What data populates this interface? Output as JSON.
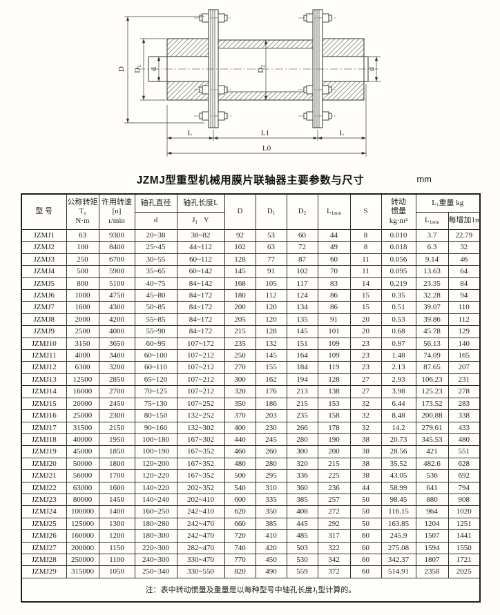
{
  "title": "JZMJ型重型机械用膜片联轴器主要参数与尺寸",
  "unit": "mm",
  "drawing": {
    "labels": {
      "D": "D",
      "D1_base": "D",
      "D1_sub": "1",
      "d_left": "d",
      "D2_base": "D",
      "D2_sub": "2",
      "d_right": "d",
      "L_left": "L",
      "L1": "L1",
      "L_right": "L",
      "L0": "L0"
    }
  },
  "table": {
    "header": {
      "model": "型 号",
      "torque": {
        "l1": "公称转矩",
        "t_base": "T",
        "t_sub": "n",
        "l3": "N·m"
      },
      "speed": {
        "l1": "许用转速",
        "l2": "[n]",
        "l3": "r/min"
      },
      "bore_dia": {
        "top": "轴孔直径",
        "sub": "d"
      },
      "bore_len": {
        "top": "轴孔长度L",
        "j_base": "J",
        "j_sub": "1",
        "y": "Y"
      },
      "D": "D",
      "D1_base": "D",
      "D1_sub": "1",
      "D2_base": "D",
      "D2_sub": "2",
      "Lmin_base": "L",
      "Lmin_sub": "1min",
      "S": "S",
      "inertia": {
        "l1": "转动",
        "l2": "惯量",
        "l3": "kg·m²"
      },
      "weight": {
        "grp_base": "L",
        "grp_sub": "1",
        "grp_tail": "重量 kg",
        "c1_base": "L",
        "c1_sub": "1min",
        "c2": "每增加1m"
      }
    },
    "rows": [
      [
        "JZMJ1",
        "63",
        "9300",
        "20~38",
        "38~82",
        "92",
        "53",
        "60",
        "44",
        "8",
        "0.010",
        "3.7",
        "22.79"
      ],
      [
        "JZMJ2",
        "100",
        "8400",
        "25~45",
        "44~112",
        "102",
        "63",
        "72",
        "49",
        "8",
        "0.018",
        "6.3",
        "32"
      ],
      [
        "JZMJ3",
        "250",
        "6700",
        "30~55",
        "60~112",
        "128",
        "77",
        "87",
        "60",
        "11",
        "0.056",
        "9.14",
        "46"
      ],
      [
        "JZMJ4",
        "500",
        "5900",
        "35~65",
        "60~142",
        "145",
        "91",
        "102",
        "70",
        "11",
        "0.095",
        "13.63",
        "64"
      ],
      [
        "JZMJ5",
        "800",
        "5100",
        "40~75",
        "84~142",
        "168",
        "105",
        "117",
        "83",
        "14",
        "0.219",
        "23.35",
        "84"
      ],
      [
        "JZMJ6",
        "1000",
        "4750",
        "45~80",
        "84~172",
        "180",
        "112",
        "124",
        "86",
        "15",
        "0.35",
        "32.28",
        "94"
      ],
      [
        "JZMJ7",
        "1600",
        "4300",
        "50~85",
        "84~172",
        "200",
        "120",
        "134",
        "86",
        "15",
        "0.51",
        "39.07",
        "110"
      ],
      [
        "JZMJ8",
        "2000",
        "4200",
        "55~85",
        "84~172",
        "205",
        "120",
        "135",
        "91",
        "20",
        "0.53",
        "39.86",
        "112"
      ],
      [
        "JZMJ9",
        "2500",
        "4000",
        "55~90",
        "84~172",
        "215",
        "128",
        "145",
        "101",
        "20",
        "0.68",
        "45.78",
        "129"
      ],
      [
        "JZMJ10",
        "3150",
        "3650",
        "60~95",
        "107~172",
        "235",
        "132",
        "151",
        "109",
        "23",
        "0.97",
        "56.13",
        "140"
      ],
      [
        "JZMJ11",
        "4000",
        "3400",
        "60~100",
        "107~212",
        "250",
        "145",
        "164",
        "109",
        "23",
        "1.48",
        "74.09",
        "165"
      ],
      [
        "JZMJ12",
        "6300",
        "3200",
        "60~110",
        "107~212",
        "270",
        "155",
        "184",
        "119",
        "23",
        "2.13",
        "87.65",
        "207"
      ],
      [
        "JZMJ13",
        "12500",
        "2850",
        "65~120",
        "107~212",
        "300",
        "162",
        "194",
        "128",
        "27",
        "2.93",
        "106.23",
        "231"
      ],
      [
        "JZMJ14",
        "16000",
        "2700",
        "70~125",
        "107~212",
        "320",
        "176",
        "213",
        "138",
        "27",
        "3.98",
        "125.23",
        "278"
      ],
      [
        "JZMJ15",
        "20000",
        "2450",
        "75~130",
        "107~252",
        "350",
        "186",
        "215",
        "153",
        "32",
        "6.44",
        "173.52",
        "283"
      ],
      [
        "JZMJ16",
        "25000",
        "2300",
        "80~150",
        "132~252",
        "370",
        "203",
        "235",
        "158",
        "32",
        "8.48",
        "200.88",
        "338"
      ],
      [
        "JZMJ17",
        "31500",
        "2150",
        "90~160",
        "132~302",
        "400",
        "230",
        "266",
        "178",
        "32",
        "14.2",
        "279.61",
        "433"
      ],
      [
        "JZMJ18",
        "40000",
        "1950",
        "100~180",
        "167~302",
        "440",
        "245",
        "280",
        "190",
        "38",
        "20.73",
        "345.53",
        "480"
      ],
      [
        "JZMJ19",
        "45000",
        "1850",
        "100~190",
        "167~352",
        "460",
        "260",
        "300",
        "200",
        "38",
        "28.56",
        "421",
        "551"
      ],
      [
        "JZMJ20",
        "50000",
        "1800",
        "120~200",
        "167~352",
        "480",
        "280",
        "320",
        "215",
        "38",
        "35.52",
        "482.6",
        "628"
      ],
      [
        "JZMJ21",
        "56000",
        "1700",
        "120~220",
        "167~352",
        "500",
        "295",
        "336",
        "225",
        "38",
        "43.05",
        "536",
        "692"
      ],
      [
        "JZMJ22",
        "63000",
        "1600",
        "140~220",
        "202~352",
        "540",
        "310",
        "360",
        "236",
        "44",
        "58.99",
        "641",
        "794"
      ],
      [
        "JZMJ23",
        "80000",
        "1450",
        "140~240",
        "202~410",
        "600",
        "335",
        "385",
        "257",
        "50",
        "98.45",
        "880",
        "908"
      ],
      [
        "JZMJ24",
        "100000",
        "1400",
        "160~250",
        "242~410",
        "620",
        "350",
        "408",
        "272",
        "50",
        "116.15",
        "964",
        "1020"
      ],
      [
        "JZMJ25",
        "125000",
        "1300",
        "180~280",
        "242~470",
        "660",
        "385",
        "445",
        "292",
        "50",
        "163.85",
        "1204",
        "1251"
      ],
      [
        "JZMJ26",
        "160000",
        "1200",
        "180~300",
        "242~470",
        "720",
        "410",
        "485",
        "317",
        "60",
        "245.9",
        "1507",
        "1441"
      ],
      [
        "JZMJ27",
        "200000",
        "1150",
        "220~300",
        "282~470",
        "740",
        "420",
        "503",
        "322",
        "60",
        "275.08",
        "1594",
        "1550"
      ],
      [
        "JZMJ28",
        "250000",
        "1100",
        "240~300",
        "330~470",
        "770",
        "450",
        "530",
        "342",
        "60",
        "342.37",
        "1807",
        "1721"
      ],
      [
        "JZMJ29",
        "315000",
        "1050",
        "250~340",
        "330~550",
        "820",
        "490",
        "559",
        "372",
        "60",
        "514.91",
        "2358",
        "2025"
      ]
    ],
    "note": {
      "pre": "注：表中转动惯量及重量是以每种型号中轴孔长度J",
      "sub": "1",
      "post": "型计算的。"
    }
  }
}
